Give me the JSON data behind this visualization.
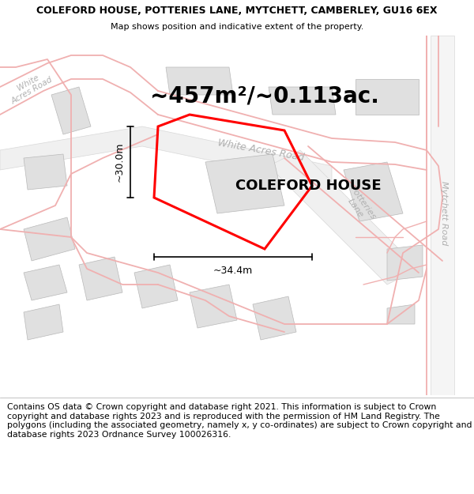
{
  "title": "COLEFORD HOUSE, POTTERIES LANE, MYTCHETT, CAMBERLEY, GU16 6EX",
  "subtitle": "Map shows position and indicative extent of the property.",
  "area_label": "~457m²/~0.113ac.",
  "property_label": "COLEFORD HOUSE",
  "dim_width": "~34.4m",
  "dim_height": "~30.0m",
  "footnote": "Contains OS data © Crown copyright and database right 2021. This information is subject to Crown copyright and database rights 2023 and is reproduced with the permission of HM Land Registry. The polygons (including the associated geometry, namely x, y co-ordinates) are subject to Crown copyright and database rights 2023 Ordnance Survey 100026316.",
  "map_bg": "#ffffff",
  "road_stroke": "#f0b0b0",
  "road_fill": "#f8e8e8",
  "building_fill": "#e0e0e0",
  "building_edge": "#b8b8b8",
  "road_label_color": "#b0b0b0",
  "title_fontsize": 9,
  "subtitle_fontsize": 8,
  "area_label_fontsize": 20,
  "property_label_fontsize": 13,
  "footnote_fontsize": 7.8,
  "dim_fontsize": 9
}
